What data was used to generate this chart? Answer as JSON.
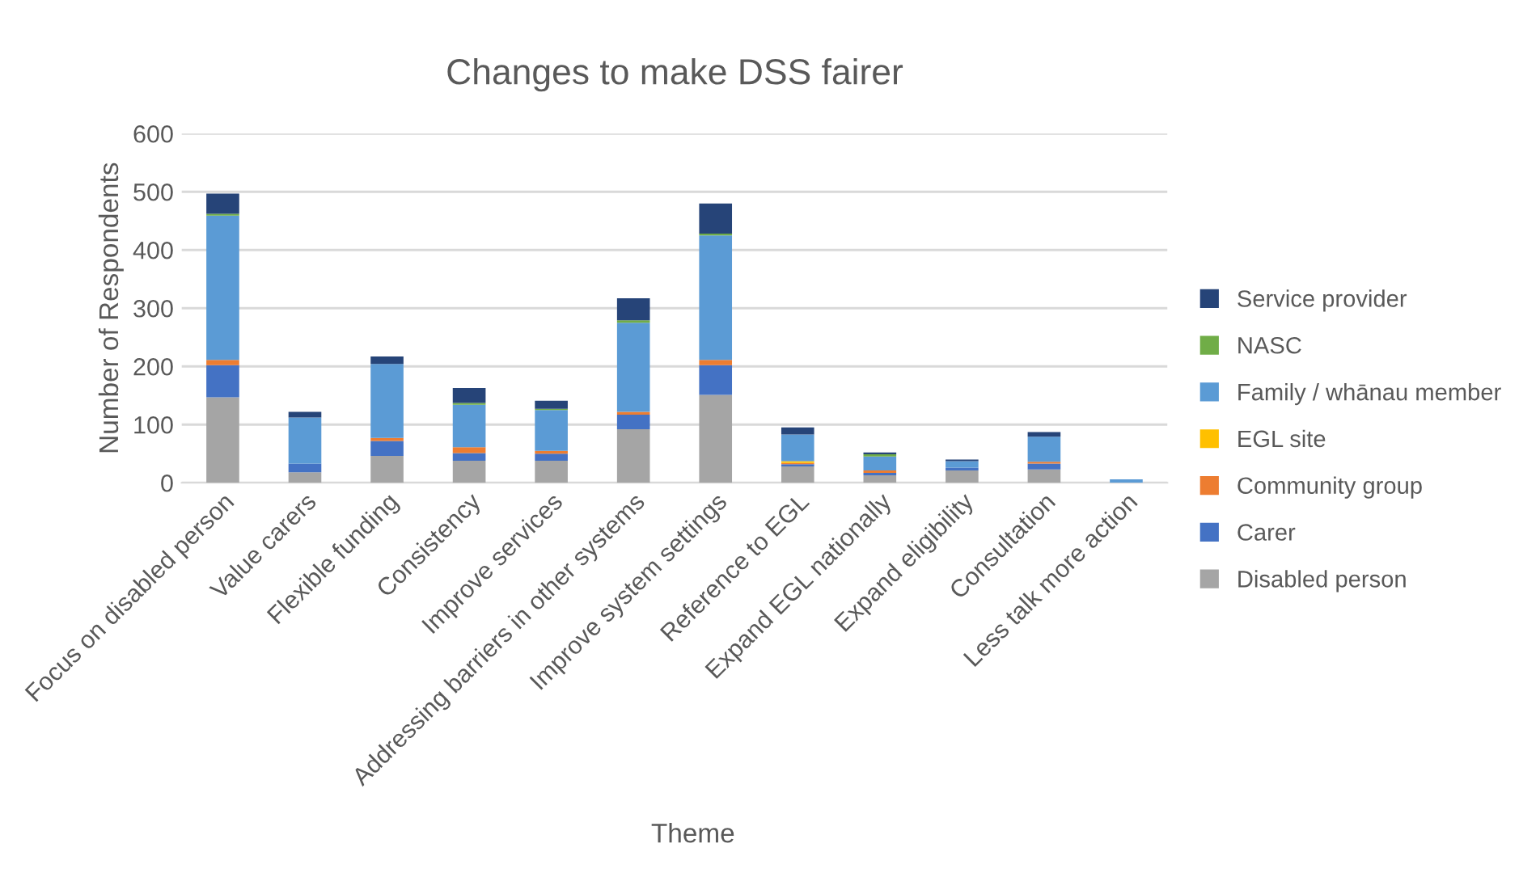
{
  "chart_data": {
    "type": "bar",
    "title": "Changes to make DSS fairer",
    "xlabel": "Theme",
    "ylabel": "Number of Respondents",
    "stacked": true,
    "grid": "y",
    "legend": "right",
    "categories": [
      "Focus on disabled person",
      "Value carers",
      "Flexible funding",
      "Consistency",
      "Improve services",
      "Addressing barriers in other systems",
      "Improve system settings",
      "Reference to EGL",
      "Expand EGL nationally",
      "Expand eligibility",
      "Consultation",
      "Less talk more action"
    ],
    "ylim": [
      0,
      600
    ],
    "yticks": [
      0,
      100,
      200,
      300,
      400,
      500,
      600
    ],
    "series": [
      {
        "name": "Disabled person",
        "color": "#a5a5a5",
        "values": [
          147,
          18,
          46,
          38,
          38,
          92,
          151,
          28,
          13,
          21,
          23,
          null
        ]
      },
      {
        "name": "Carer",
        "color": "#4472c4",
        "values": [
          55,
          15,
          26,
          13,
          12,
          25,
          51,
          4,
          4,
          5,
          10,
          0
        ]
      },
      {
        "name": "Community group",
        "color": "#ed7d31",
        "values": [
          9,
          0,
          5,
          10,
          5,
          5,
          9,
          2,
          4,
          0,
          3,
          0
        ]
      },
      {
        "name": "EGL site",
        "color": "#ffc000",
        "values": [
          0,
          0,
          0,
          0,
          0,
          0,
          0,
          3,
          0,
          0,
          0,
          0
        ]
      },
      {
        "name": "Family / whānau member",
        "color": "#5b9bd5",
        "values": [
          248,
          79,
          127,
          73,
          70,
          153,
          214,
          46,
          24,
          11,
          43,
          6
        ]
      },
      {
        "name": "NASC",
        "color": "#70ad47",
        "values": [
          3,
          0,
          0,
          3,
          2,
          4,
          3,
          0,
          4,
          0,
          0,
          0
        ]
      },
      {
        "name": "Service provider",
        "color": "#264478",
        "values": [
          35,
          10,
          13,
          26,
          14,
          38,
          52,
          12,
          3,
          3,
          8,
          0
        ]
      }
    ]
  }
}
